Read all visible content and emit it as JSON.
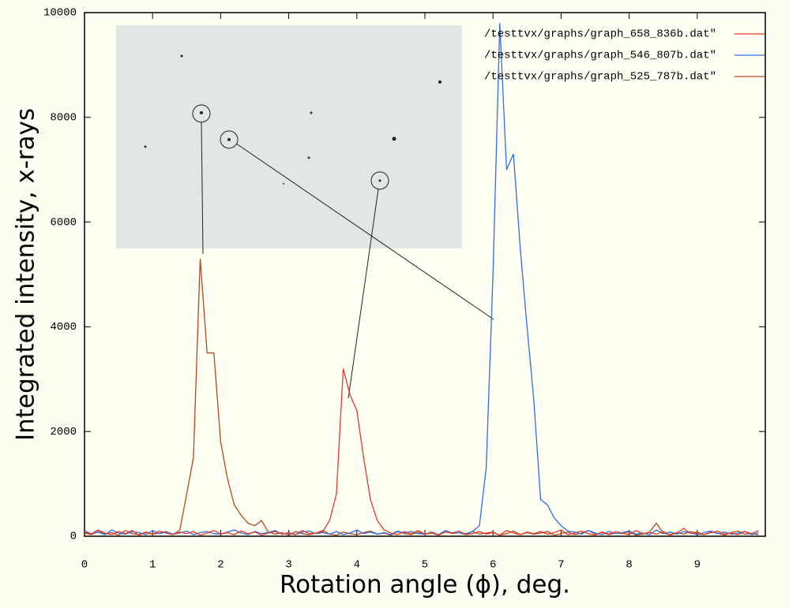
{
  "chart_data": {
    "type": "line",
    "x_label": "Rotation angle (ϕ), deg.",
    "y_label": "Integrated intensity, x-rays",
    "xlim": [
      0,
      10
    ],
    "ylim": [
      0,
      10000
    ],
    "xticks": [
      0,
      1,
      2,
      3,
      4,
      5,
      6,
      7,
      8,
      9
    ],
    "yticks": [
      0,
      2000,
      4000,
      6000,
      8000,
      10000
    ],
    "legend": "top-right",
    "x": [
      0,
      0.1,
      0.2,
      0.3,
      0.4,
      0.5,
      0.6,
      0.7,
      0.8,
      0.9,
      1,
      1.1,
      1.2,
      1.3,
      1.4,
      1.5,
      1.6,
      1.7,
      1.8,
      1.9,
      2,
      2.1,
      2.2,
      2.3,
      2.4,
      2.5,
      2.6,
      2.7,
      2.8,
      2.9,
      3,
      3.1,
      3.2,
      3.3,
      3.4,
      3.5,
      3.6,
      3.7,
      3.8,
      3.9,
      4,
      4.1,
      4.2,
      4.3,
      4.4,
      4.5,
      4.6,
      4.7,
      4.8,
      4.9,
      5,
      5.1,
      5.2,
      5.3,
      5.4,
      5.5,
      5.6,
      5.7,
      5.8,
      5.9,
      6,
      6.1,
      6.2,
      6.3,
      6.4,
      6.5,
      6.6,
      6.7,
      6.8,
      6.9,
      7,
      7.1,
      7.2,
      7.3,
      7.4,
      7.5,
      7.6,
      7.7,
      7.8,
      7.9,
      8,
      8.1,
      8.2,
      8.3,
      8.4,
      8.5,
      8.6,
      8.7,
      8.8,
      8.9,
      9,
      9.1,
      9.2,
      9.3,
      9.4,
      9.5,
      9.6,
      9.7,
      9.8,
      9.9
    ],
    "series": [
      {
        "name": "/testtvx/graphs/graph_658_836b.dat\"",
        "color": "#e8382c",
        "values": [
          80,
          40,
          120,
          60,
          30,
          90,
          50,
          110,
          20,
          70,
          40,
          100,
          60,
          30,
          80,
          50,
          90,
          20,
          60,
          110,
          40,
          70,
          30,
          100,
          50,
          80,
          20,
          60,
          90,
          40,
          70,
          30,
          110,
          50,
          60,
          90,
          300,
          800,
          3200,
          2700,
          2400,
          1500,
          700,
          300,
          120,
          60,
          30,
          90,
          50,
          110,
          40,
          70,
          20,
          80,
          60,
          100,
          30,
          50,
          90,
          40,
          70,
          20,
          110,
          60,
          30,
          80,
          50,
          90,
          40,
          70,
          120,
          30,
          60,
          100,
          50,
          20,
          80,
          40,
          90,
          60,
          30,
          110,
          50,
          70,
          40,
          90,
          20,
          60,
          150,
          50,
          80,
          30,
          70,
          100,
          40,
          60,
          30,
          90,
          50,
          110
        ]
      },
      {
        "name": "/testtvx/graphs/graph_546_807b.dat\"",
        "color": "#2f6de8",
        "values": [
          100,
          50,
          80,
          30,
          120,
          60,
          40,
          90,
          70,
          30,
          110,
          50,
          80,
          40,
          60,
          100,
          30,
          70,
          90,
          50,
          40,
          80,
          120,
          60,
          30,
          90,
          50,
          70,
          110,
          40,
          60,
          30,
          80,
          100,
          50,
          70,
          40,
          90,
          30,
          60,
          120,
          50,
          80,
          40,
          70,
          30,
          100,
          60,
          90,
          50,
          40,
          80,
          30,
          110,
          60,
          70,
          50,
          90,
          200,
          1300,
          5000,
          9800,
          7000,
          7300,
          5500,
          4000,
          2600,
          700,
          600,
          350,
          200,
          100,
          80,
          40,
          110,
          60,
          30,
          90,
          50,
          70,
          100,
          40,
          60,
          30,
          120,
          50,
          80,
          40,
          90,
          60,
          30,
          70,
          100,
          50,
          80,
          40,
          60,
          90,
          30,
          70
        ]
      },
      {
        "name": "/testtvx/graphs/graph_525_787b.dat\"",
        "color": "#b4481f",
        "values": [
          60,
          30,
          90,
          40,
          70,
          20,
          110,
          50,
          30,
          80,
          40,
          60,
          90,
          30,
          120,
          800,
          1500,
          5300,
          3500,
          3500,
          1800,
          1100,
          600,
          400,
          250,
          200,
          300,
          80,
          40,
          70,
          20,
          90,
          50,
          30,
          60,
          110,
          40,
          20,
          80,
          50,
          30,
          70,
          100,
          40,
          60,
          20,
          90,
          50,
          30,
          80,
          40,
          60,
          20,
          110,
          50,
          70,
          30,
          90,
          40,
          60,
          80,
          20,
          50,
          100,
          30,
          70,
          40,
          60,
          90,
          20,
          50,
          80,
          30,
          60,
          110,
          40,
          70,
          30,
          60,
          50,
          90,
          20,
          40,
          80,
          250,
          60,
          30,
          70,
          40,
          90,
          50,
          30,
          80,
          60,
          20,
          70,
          100,
          40,
          50,
          30
        ]
      }
    ]
  }
}
